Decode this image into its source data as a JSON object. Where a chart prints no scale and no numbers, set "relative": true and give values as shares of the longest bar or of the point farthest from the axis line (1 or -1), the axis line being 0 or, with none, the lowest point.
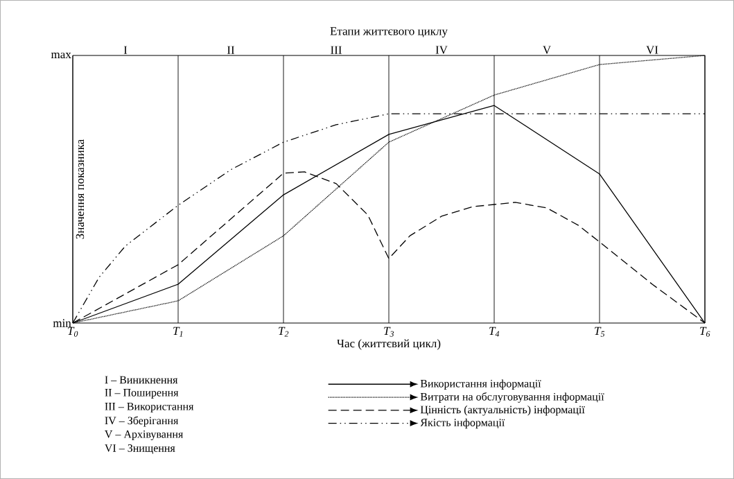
{
  "chart_data": {
    "type": "line",
    "relative": true,
    "title": "Етапи життєвого циклу",
    "xlabel": "Час (життєвий цикл)",
    "ylabel": "Значення показника",
    "xlim": [
      0,
      6
    ],
    "xticks": [
      {
        "value": 0,
        "label": "T$_{0}$"
      },
      {
        "value": 1,
        "label": "T$_{1}$"
      },
      {
        "value": 2,
        "label": "T$_{2}$"
      },
      {
        "value": 3,
        "label": "T$_{3}$"
      },
      {
        "value": 4,
        "label": "T$_{4}$"
      },
      {
        "value": 5,
        "label": "T$_{5}$"
      },
      {
        "value": 6,
        "label": "T$_{6}$"
      }
    ],
    "grid": "x",
    "legend": "bottom",
    "marker": "none",
    "series": [
      {
        "name": "Використання інформації",
        "color": "#000000",
        "line_style": "solid",
        "x": [
          0,
          1,
          2,
          3,
          4,
          5,
          6
        ],
        "values": [
          0,
          0.145,
          0.479,
          0.705,
          0.813,
          0.557,
          0
        ]
      },
      {
        "name": "Витрати на обслуговування інформації",
        "color": "#000000",
        "line_style": "dotted",
        "x": [
          0,
          1,
          2,
          3,
          4,
          5,
          6
        ],
        "values": [
          0,
          0.083,
          0.326,
          0.676,
          0.852,
          0.966,
          1.0
        ]
      },
      {
        "name": "Цінність (актуальність) інформації",
        "color": "#000000",
        "line_style": "dashed",
        "x": [
          0,
          1,
          2,
          2.2,
          2.5,
          2.8,
          3,
          3.2,
          3.5,
          3.8,
          4,
          4.2,
          4.5,
          4.8,
          5,
          5.5,
          6
        ],
        "values": [
          0,
          0.218,
          0.56,
          0.565,
          0.521,
          0.404,
          0.241,
          0.326,
          0.399,
          0.435,
          0.443,
          0.451,
          0.43,
          0.365,
          0.303,
          0.145,
          0
        ]
      },
      {
        "name": "Якість інформації",
        "color": "#000000",
        "line_style": "dashdotdotted",
        "x": [
          0,
          0.25,
          0.5,
          1,
          1.5,
          2,
          2.5,
          3,
          4,
          5,
          6
        ],
        "values": [
          0,
          0.171,
          0.288,
          0.44,
          0.573,
          0.676,
          0.741,
          0.782,
          0.782,
          0.782,
          0.782
        ]
      }
    ],
    "annotations": [
      "min",
      "max",
      "I",
      "II",
      "III",
      "IV",
      "V",
      "VI",
      "I – Виникнення",
      "II – Поширення",
      "III – Використання",
      "IV – Зберігання",
      "V – Архівування",
      "VI – Знищення"
    ]
  }
}
